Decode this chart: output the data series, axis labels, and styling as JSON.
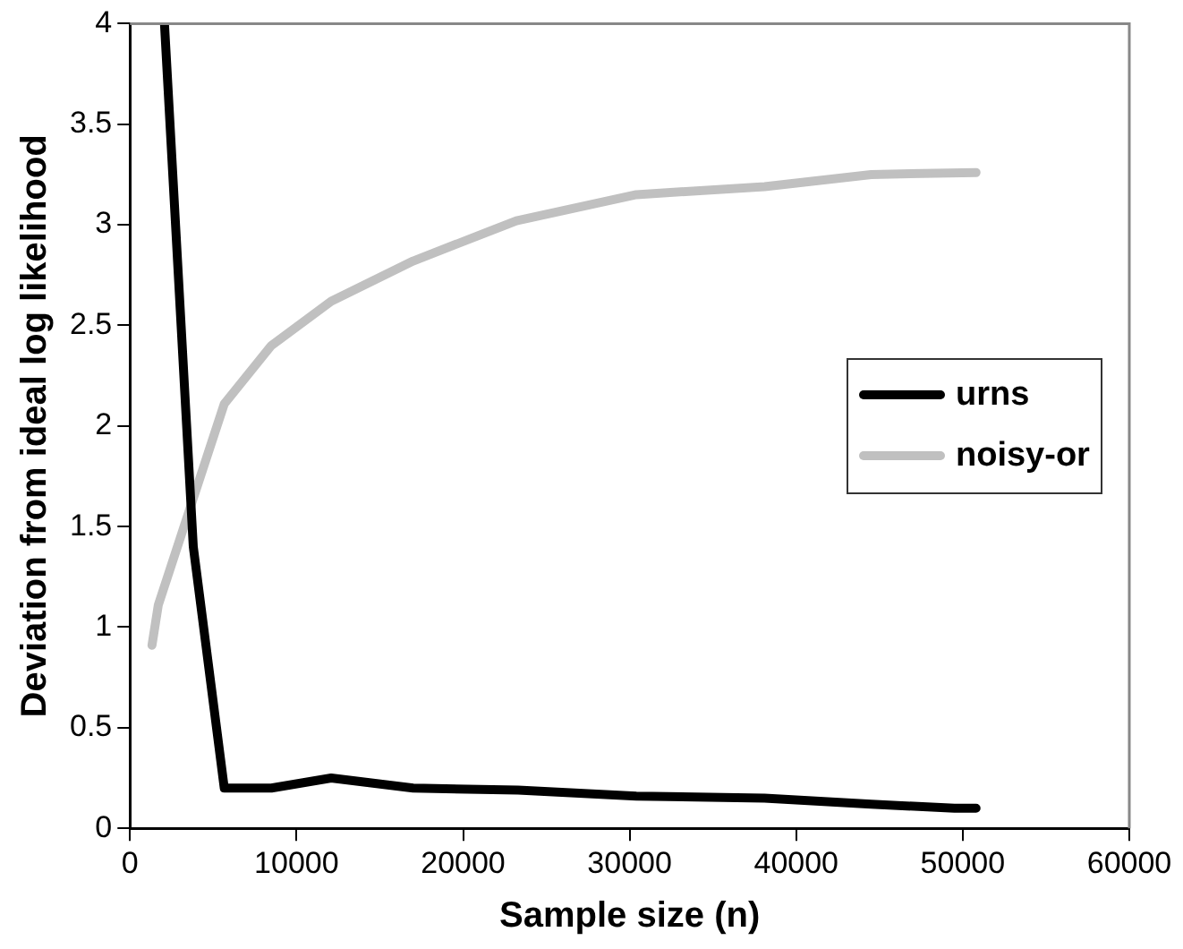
{
  "chart_data": {
    "type": "line",
    "xlabel": "Sample size (n)",
    "ylabel": "Deviation from ideal log likelihood",
    "xlim": [
      0,
      60000
    ],
    "xticks": [
      0,
      10000,
      20000,
      30000,
      40000,
      50000,
      60000
    ],
    "ylim": [
      0,
      4
    ],
    "yticks": [
      0,
      0.5,
      1,
      1.5,
      2,
      2.5,
      3,
      3.5,
      4
    ],
    "grid": false,
    "legend": "right",
    "marker": "none",
    "line_style": "solid",
    "series": [
      {
        "name": "urns",
        "color": "#000000",
        "x": [
          2070,
          3800,
          5660,
          8490,
          12080,
          17000,
          23300,
          30400,
          38100,
          44500,
          49500,
          50800
        ],
        "values": [
          4,
          1.4,
          0.2,
          0.2,
          0.25,
          0.2,
          0.19,
          0.16,
          0.15,
          0.12,
          0.1,
          0.1
        ]
      },
      {
        "name": "noisy-or",
        "color": "#c0c0c0",
        "x": [
          1320,
          1700,
          5660,
          8490,
          12080,
          17000,
          23200,
          30400,
          38100,
          44500,
          50800
        ],
        "values": [
          0.91,
          1.11,
          2.11,
          2.4,
          2.62,
          2.82,
          3.02,
          3.15,
          3.19,
          3.25,
          3.26
        ]
      }
    ]
  }
}
